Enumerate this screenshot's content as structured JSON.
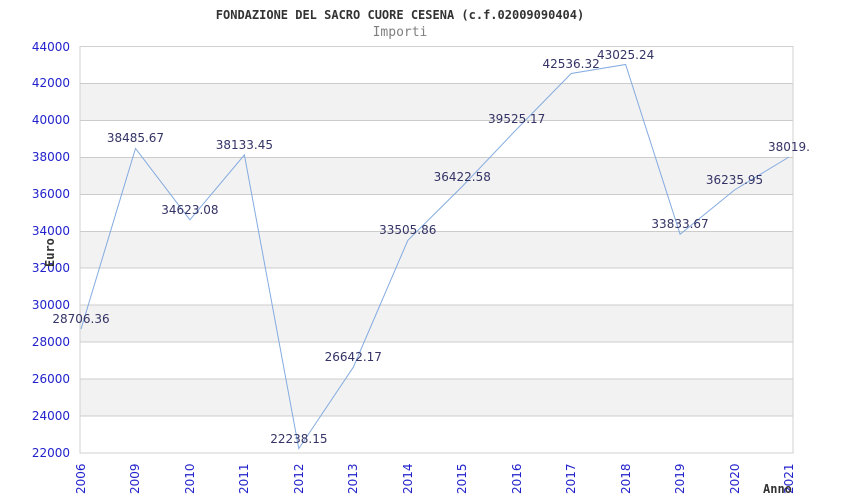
{
  "header": {
    "title": "FONDAZIONE DEL SACRO CUORE CESENA (c.f.02009090404)",
    "subtitle": "Importi"
  },
  "chart_data": {
    "type": "line",
    "title": "Importi",
    "xlabel": "Anno",
    "ylabel": "Euro",
    "categories": [
      "2006",
      "2009",
      "2010",
      "2011",
      "2012",
      "2013",
      "2014",
      "2015",
      "2016",
      "2017",
      "2018",
      "2019",
      "2020",
      "2021"
    ],
    "series": [
      {
        "name": "Importi",
        "values": [
          28706.36,
          38485.67,
          34623.08,
          38133.45,
          22238.15,
          26642.17,
          33505.86,
          36422.58,
          39525.17,
          42536.32,
          43025.24,
          33833.67,
          36235.95,
          38019.0
        ]
      }
    ],
    "point_labels": [
      "28706.36",
      "38485.67",
      "34623.08",
      "38133.45",
      "22238.15",
      "26642.17",
      "33505.86",
      "36422.58",
      "39525.17",
      "42536.32",
      "43025.24",
      "33833.67",
      "36235.95",
      "38019."
    ],
    "ylim": [
      22000,
      44000
    ],
    "ytick_step": 2000,
    "yticks": [
      "44000",
      "42000",
      "40000",
      "38000",
      "36000",
      "34000",
      "32000",
      "30000",
      "28000",
      "26000",
      "24000",
      "22000"
    ],
    "grid": true,
    "legend_position": "none",
    "colors": {
      "line": "#84abe0",
      "tick_label": "#2222cc",
      "data_label": "#333366",
      "grid_line": "#cccccc",
      "plot_border": "#d0d0d0",
      "band_even": "#ffffff",
      "band_odd": "#f2f2f2",
      "title": "#333333",
      "subtitle": "#808080"
    }
  }
}
